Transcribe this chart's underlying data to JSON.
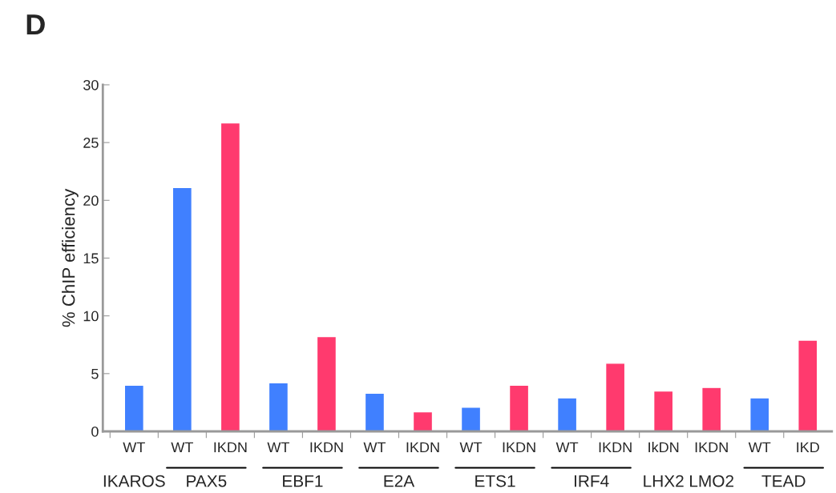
{
  "chart_data": {
    "type": "bar",
    "title": "D",
    "ylabel": "% ChIP efficiency",
    "categories": [
      "WT",
      "WT",
      "IKDN",
      "WT",
      "IKDN",
      "WT",
      "IKDN",
      "WT",
      "IKDN",
      "WT",
      "IKDN",
      "IkDN",
      "IKDN",
      "WT",
      "IKD"
    ],
    "values": [
      4.0,
      21.1,
      26.7,
      4.2,
      8.2,
      3.3,
      1.7,
      2.1,
      4.0,
      2.9,
      5.9,
      3.5,
      3.8,
      2.9,
      7.9
    ],
    "colors": [
      "#4080ff",
      "#4080ff",
      "#ff3a6e",
      "#4080ff",
      "#ff3a6e",
      "#4080ff",
      "#ff3a6e",
      "#4080ff",
      "#ff3a6e",
      "#4080ff",
      "#ff3a6e",
      "#ff3a6e",
      "#ff3a6e",
      "#4080ff",
      "#ff3a6e"
    ],
    "ylim": [
      0,
      30
    ],
    "yticks": [
      0,
      5,
      10,
      15,
      20,
      25,
      30
    ],
    "grid": false,
    "legend": false,
    "annotations": [
      "IKAROS",
      "PAX5",
      "EBF1",
      "E2A",
      "ETS1",
      "IRF4",
      "LHX2",
      "LMO2",
      "TEAD"
    ]
  }
}
